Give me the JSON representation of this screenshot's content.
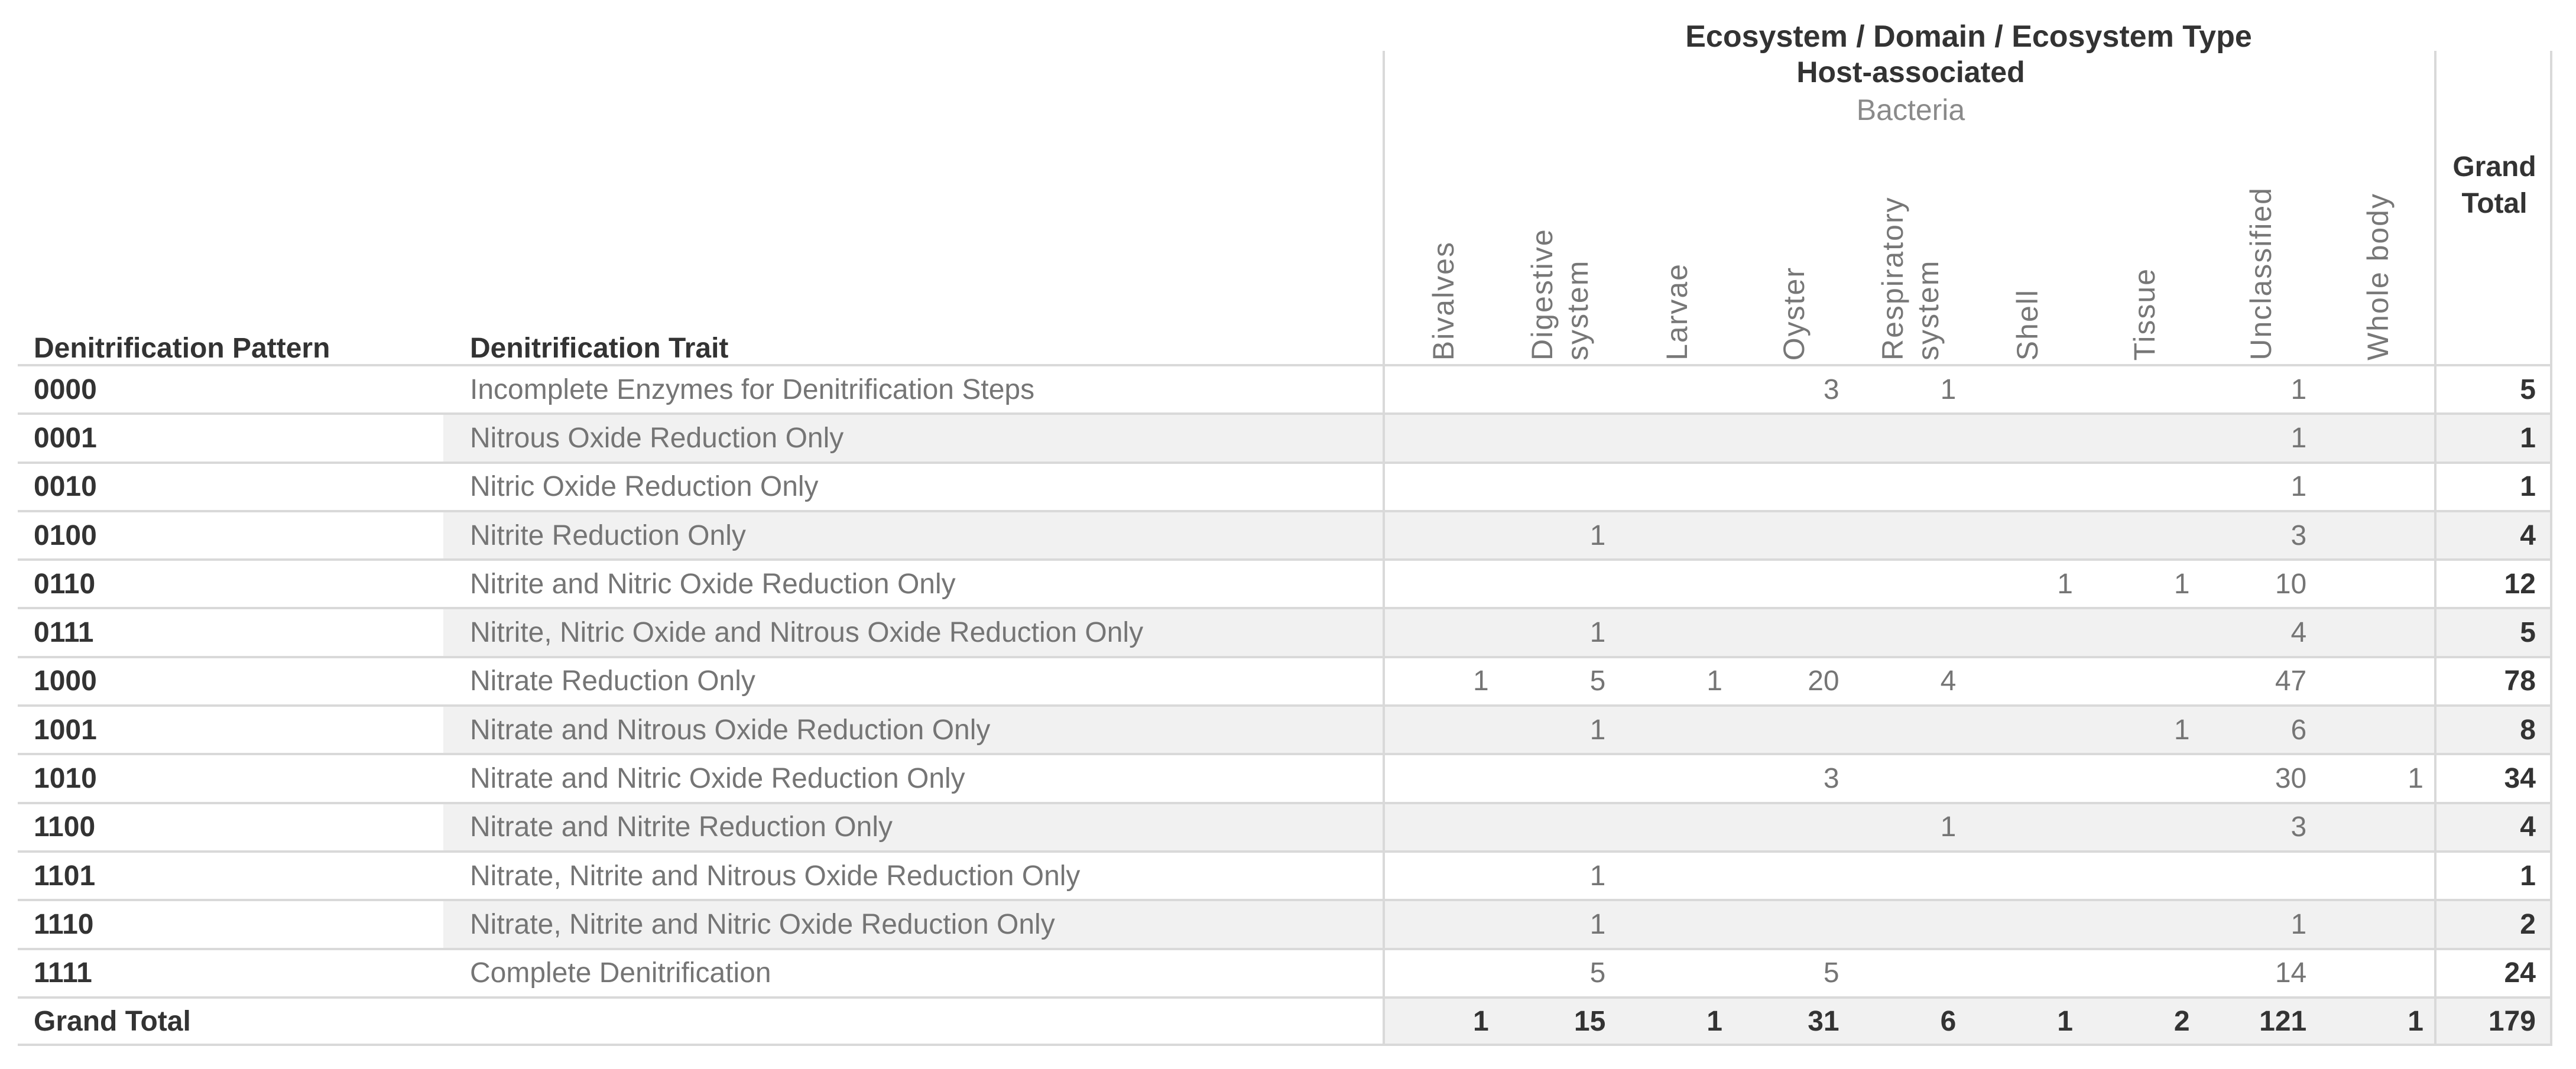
{
  "header": {
    "title": "Ecosystem  /  Domain  /  Ecosystem Type",
    "group": "Host-associated",
    "subgroup": "Bacteria",
    "row_header_1": "Denitrification Pattern",
    "row_header_2": "Denitrification Trait",
    "grand_total_label": "Grand Total",
    "columns": [
      "Bivalves",
      "Digestive system",
      "Larvae",
      "Oyster",
      "Respiratory system",
      "Shell",
      "Tissue",
      "Unclassified",
      "Whole body"
    ]
  },
  "colors": {
    "dark_text": "#333333",
    "muted_text": "#757575",
    "row_band": "#f1f1f1",
    "grid_line": "#d9d9d9"
  },
  "table": {
    "rows": [
      {
        "pattern": "0000",
        "trait": "Incomplete Enzymes for Denitrification Steps",
        "striped": false,
        "values": [
          "",
          "",
          "",
          "3",
          "1",
          "",
          "",
          "1",
          ""
        ],
        "total": "5"
      },
      {
        "pattern": "0001",
        "trait": "Nitrous Oxide Reduction Only",
        "striped": true,
        "values": [
          "",
          "",
          "",
          "",
          "",
          "",
          "",
          "1",
          ""
        ],
        "total": "1"
      },
      {
        "pattern": "0010",
        "trait": "Nitric Oxide Reduction Only",
        "striped": false,
        "values": [
          "",
          "",
          "",
          "",
          "",
          "",
          "",
          "1",
          ""
        ],
        "total": "1"
      },
      {
        "pattern": "0100",
        "trait": "Nitrite Reduction Only",
        "striped": true,
        "values": [
          "",
          "1",
          "",
          "",
          "",
          "",
          "",
          "3",
          ""
        ],
        "total": "4"
      },
      {
        "pattern": "0110",
        "trait": "Nitrite and Nitric Oxide Reduction Only",
        "striped": false,
        "values": [
          "",
          "",
          "",
          "",
          "",
          "1",
          "1",
          "10",
          ""
        ],
        "total": "12"
      },
      {
        "pattern": "0111",
        "trait": "Nitrite, Nitric Oxide and Nitrous Oxide Reduction Only",
        "striped": true,
        "values": [
          "",
          "1",
          "",
          "",
          "",
          "",
          "",
          "4",
          ""
        ],
        "total": "5"
      },
      {
        "pattern": "1000",
        "trait": "Nitrate Reduction Only",
        "striped": false,
        "values": [
          "1",
          "5",
          "1",
          "20",
          "4",
          "",
          "",
          "47",
          ""
        ],
        "total": "78"
      },
      {
        "pattern": "1001",
        "trait": "Nitrate and Nitrous Oxide Reduction Only",
        "striped": true,
        "values": [
          "",
          "1",
          "",
          "",
          "",
          "",
          "1",
          "6",
          ""
        ],
        "total": "8"
      },
      {
        "pattern": "1010",
        "trait": "Nitrate and Nitric Oxide Reduction Only",
        "striped": false,
        "values": [
          "",
          "",
          "",
          "3",
          "",
          "",
          "",
          "30",
          "1"
        ],
        "total": "34"
      },
      {
        "pattern": "1100",
        "trait": "Nitrate and Nitrite Reduction Only",
        "striped": true,
        "values": [
          "",
          "",
          "",
          "",
          "1",
          "",
          "",
          "3",
          ""
        ],
        "total": "4"
      },
      {
        "pattern": "1101",
        "trait": "Nitrate, Nitrite and Nitrous Oxide Reduction Only",
        "striped": false,
        "values": [
          "",
          "1",
          "",
          "",
          "",
          "",
          "",
          "",
          ""
        ],
        "total": "1"
      },
      {
        "pattern": "1110",
        "trait": "Nitrate, Nitrite and Nitric Oxide Reduction Only",
        "striped": true,
        "values": [
          "",
          "1",
          "",
          "",
          "",
          "",
          "",
          "1",
          ""
        ],
        "total": "2"
      },
      {
        "pattern": "1111",
        "trait": "Complete Denitrification",
        "striped": false,
        "values": [
          "",
          "5",
          "",
          "5",
          "",
          "",
          "",
          "14",
          ""
        ],
        "total": "24"
      }
    ],
    "grand_total_row": {
      "label": "Grand Total",
      "values": [
        "1",
        "15",
        "1",
        "31",
        "6",
        "1",
        "2",
        "121",
        "1"
      ],
      "total": "179"
    }
  }
}
